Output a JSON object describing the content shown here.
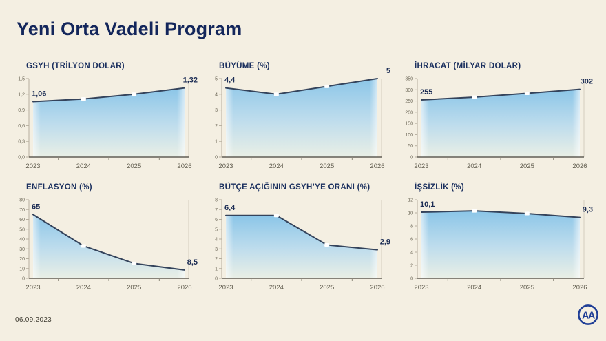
{
  "page": {
    "title": "Yeni Orta Vadeli Program",
    "date": "06.09.2023",
    "logo_text": "AA",
    "colors": {
      "background": "#f4efe2",
      "title_navy": "#13265b",
      "chart_title_navy": "#1a2f5e",
      "line": "#34435b",
      "fill_top": "#85c3e8",
      "fill_mid": "#b7daee",
      "fill_bottom": "#e8efe6",
      "marker": "#ffffff",
      "axis_light": "#b6ae9e",
      "axis_right": "#d5cebf",
      "axis_dark": "#45423a",
      "minor_tick": "#8d887b",
      "ytick_text": "#6e6959",
      "xtick_text": "#615d4f",
      "value_text": "#1b2c54",
      "logo_blue": "#1f3e96"
    }
  },
  "chart_data": [
    {
      "type": "area",
      "title": "GSYH (TRİLYON DOLAR)",
      "categories": [
        "2023",
        "2024",
        "2025",
        "2026"
      ],
      "values": [
        1.06,
        1.11,
        1.2,
        1.32
      ],
      "ylim": [
        0,
        1.5
      ],
      "yticks": [
        "0,0",
        "0,3",
        "0,6",
        "0,9",
        "1,2",
        "1,5"
      ],
      "first_label": "1,06",
      "last_label": "1,32",
      "xlabel": "",
      "ylabel": "",
      "grid": false,
      "legend": false
    },
    {
      "type": "area",
      "title": "BÜYÜME (%)",
      "categories": [
        "2023",
        "2024",
        "2025",
        "2026"
      ],
      "values": [
        4.4,
        4.0,
        4.5,
        5.0
      ],
      "ylim": [
        0,
        5
      ],
      "yticks": [
        "0",
        "1",
        "2",
        "3",
        "4",
        "5"
      ],
      "first_label": "4,4",
      "last_label": "5",
      "xlabel": "",
      "ylabel": "",
      "grid": false,
      "legend": false
    },
    {
      "type": "area",
      "title": "İHRACAT (MİLYAR DOLAR)",
      "categories": [
        "2023",
        "2024",
        "2025",
        "2026"
      ],
      "values": [
        255,
        267,
        284,
        302
      ],
      "ylim": [
        0,
        350
      ],
      "yticks": [
        "0",
        "50",
        "100",
        "150",
        "200",
        "250",
        "300",
        "350"
      ],
      "first_label": "255",
      "last_label": "302",
      "xlabel": "",
      "ylabel": "",
      "grid": false,
      "legend": false
    },
    {
      "type": "area",
      "title": "ENFLASYON (%)",
      "categories": [
        "2023",
        "2024",
        "2025",
        "2026"
      ],
      "values": [
        65,
        33,
        15.2,
        8.5
      ],
      "ylim": [
        0,
        80
      ],
      "yticks": [
        "0",
        "10",
        "20",
        "30",
        "40",
        "50",
        "60",
        "70",
        "80"
      ],
      "first_label": "65",
      "last_label": "8,5",
      "xlabel": "",
      "ylabel": "",
      "grid": false,
      "legend": false
    },
    {
      "type": "area",
      "title": "BÜTÇE AÇIĞININ GSYH’YE ORANI (%)",
      "categories": [
        "2023",
        "2024",
        "2025",
        "2026"
      ],
      "values": [
        6.4,
        6.4,
        3.4,
        2.9
      ],
      "ylim": [
        0,
        8
      ],
      "yticks": [
        "0",
        "1",
        "2",
        "3",
        "4",
        "5",
        "6",
        "7",
        "8"
      ],
      "first_label": "6,4",
      "last_label": "2,9",
      "xlabel": "",
      "ylabel": "",
      "grid": false,
      "legend": false
    },
    {
      "type": "area",
      "title": "İŞSİZLİK (%)",
      "categories": [
        "2023",
        "2024",
        "2025",
        "2026"
      ],
      "values": [
        10.1,
        10.3,
        9.9,
        9.3
      ],
      "ylim": [
        0,
        12
      ],
      "yticks": [
        "0",
        "2",
        "4",
        "6",
        "8",
        "10",
        "12"
      ],
      "first_label": "10,1",
      "last_label": "9,3",
      "xlabel": "",
      "ylabel": "",
      "grid": false,
      "legend": false
    }
  ]
}
